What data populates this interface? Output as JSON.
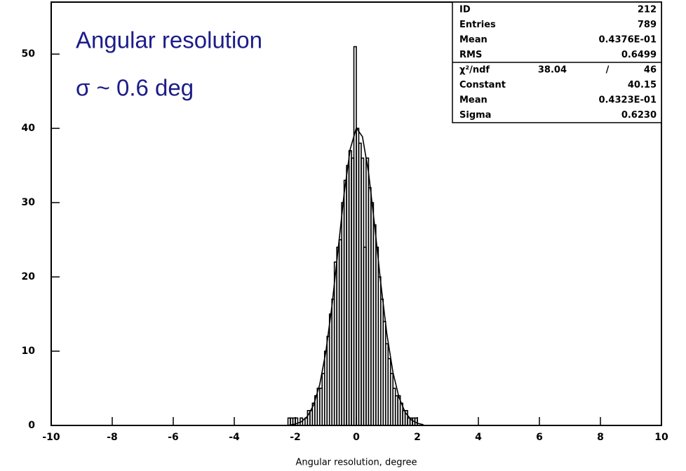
{
  "chart_data": {
    "type": "histogram",
    "annotations": [
      "Angular resolution",
      "σ ~ 0.6 deg"
    ],
    "xlabel": "Angular resolution, degree",
    "xlim": [
      -10,
      10
    ],
    "ylim": [
      0,
      57
    ],
    "xticks": [
      -10,
      -8,
      -6,
      -4,
      -2,
      0,
      2,
      4,
      6,
      8,
      10
    ],
    "yticks": [
      0,
      10,
      20,
      30,
      40,
      50
    ],
    "color": "#000000",
    "bins": [
      -2.24,
      -2.16,
      -2.08,
      -2,
      -1.92,
      -1.84,
      -1.76,
      -1.68,
      -1.6,
      -1.52,
      -1.44,
      -1.36,
      -1.28,
      -1.2,
      -1.12,
      -1.04,
      -0.96,
      -0.88,
      -0.8,
      -0.72,
      -0.64,
      -0.56,
      -0.48,
      -0.4,
      -0.32,
      -0.24,
      -0.16,
      -0.08,
      0,
      0.08,
      0.16,
      0.24,
      0.32,
      0.4,
      0.48,
      0.56,
      0.64,
      0.72,
      0.8,
      0.88,
      0.96,
      1.04,
      1.12,
      1.2,
      1.28,
      1.36,
      1.44,
      1.52,
      1.6,
      1.68,
      1.76,
      1.84,
      1.92,
      2,
      2.08,
      2.16,
      2.24
    ],
    "values": [
      1,
      1,
      1,
      1,
      0,
      1,
      0,
      1,
      2,
      2,
      3,
      4,
      5,
      5,
      7,
      10,
      12,
      15,
      17,
      22,
      24,
      25,
      30,
      33,
      35,
      37,
      36,
      51,
      40,
      38,
      36,
      24,
      36,
      32,
      30,
      27,
      24,
      20,
      17,
      14,
      11,
      9,
      7,
      5,
      4,
      4,
      3,
      2,
      2,
      1,
      1,
      1,
      1,
      0,
      0,
      0
    ],
    "fit": {
      "x": [
        -2.2,
        -2,
        -1.8,
        -1.6,
        -1.4,
        -1.2,
        -1,
        -0.8,
        -0.6,
        -0.4,
        -0.2,
        0,
        0.2,
        0.4,
        0.6,
        0.8,
        1,
        1.2,
        1.4,
        1.6,
        1.8,
        2,
        2.2
      ],
      "values": [
        0.06,
        0.19,
        0.5,
        1.24,
        2.75,
        5.49,
        9.89,
        16.07,
        23.57,
        31.18,
        37.21,
        40.05,
        38.89,
        34.07,
        26.92,
        19.19,
        12.34,
        7.16,
        3.75,
        1.77,
        0.75,
        0.29,
        0.1
      ]
    },
    "stats": [
      [
        "ID",
        "212"
      ],
      [
        "Entries",
        "789"
      ],
      [
        "Mean",
        "0.4376E-01"
      ],
      [
        "RMS",
        "0.6499"
      ]
    ],
    "fit_stats": [
      [
        "χ²/ndf",
        "38.04",
        "/",
        "46"
      ],
      [
        "Constant",
        "40.15"
      ],
      [
        "Mean",
        "0.4323E-01"
      ],
      [
        "Sigma",
        "0.6230"
      ]
    ]
  }
}
